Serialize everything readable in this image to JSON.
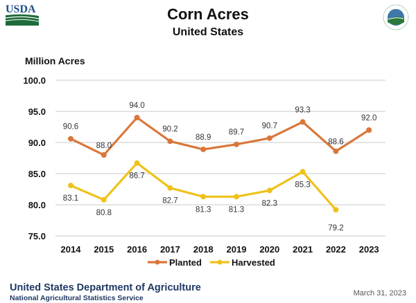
{
  "header": {
    "logo_left": "USDA",
    "logo_right": "Agriculture Counts",
    "title": "Corn Acres",
    "subtitle": "United States"
  },
  "footer": {
    "org": "United States Department of Agriculture",
    "service": "National Agricultural Statistics Service",
    "date": "March 31, 2023"
  },
  "chart_data": {
    "type": "line",
    "title": "Corn Acres",
    "subtitle": "United States",
    "xlabel": "",
    "ylabel": "Million Acres",
    "ylim": [
      75,
      100
    ],
    "yticks": [
      75,
      80,
      85,
      90,
      95,
      100
    ],
    "ytick_labels": [
      "75.0",
      "80.0",
      "85.0",
      "90.0",
      "95.0",
      "100.0"
    ],
    "grid": true,
    "legend_position": "bottom",
    "categories": [
      "2014",
      "2015",
      "2016",
      "2017",
      "2018",
      "2019",
      "2020",
      "2021",
      "2022",
      "2023"
    ],
    "series": [
      {
        "name": "Planted",
        "color": "#D9773A",
        "values": [
          90.6,
          88.0,
          94.0,
          90.2,
          88.9,
          89.7,
          90.7,
          93.3,
          88.6,
          92.0
        ],
        "labels": [
          "90.6",
          "88.0",
          "94.0",
          "90.2",
          "88.9",
          "89.7",
          "90.7",
          "93.3",
          "88.6",
          "92.0"
        ]
      },
      {
        "name": "Harvested",
        "color": "#EEC21A",
        "values": [
          83.1,
          80.8,
          86.7,
          82.7,
          81.3,
          81.3,
          82.3,
          85.3,
          79.2,
          null
        ],
        "labels": [
          "83.1",
          "80.8",
          "86.7",
          "82.7",
          "81.3",
          "81.3",
          "82.3",
          "85.3",
          "79.2",
          null
        ]
      }
    ]
  }
}
